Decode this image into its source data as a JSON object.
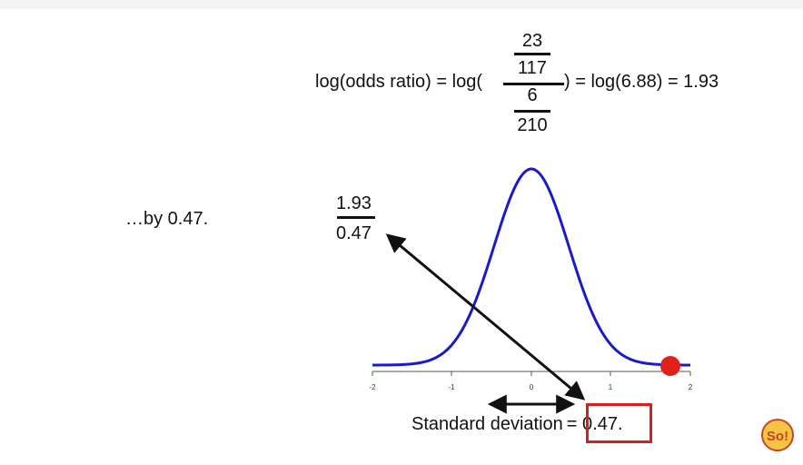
{
  "equation": {
    "prefix": "log(odds ratio) = log(",
    "numerator_top": "23",
    "numerator_bottom": "117",
    "denominator_top": "6",
    "denominator_bottom": "210",
    "suffix": ") = log(6.88) = 1.93"
  },
  "narration": "…by 0.47.",
  "ratio": {
    "numerator": "1.93",
    "denominator": "0.47"
  },
  "axis": {
    "ticks": [
      "-2",
      "-1",
      "0",
      "1",
      "2"
    ]
  },
  "standard_deviation": {
    "label": "Standard deviation",
    "value": "= 0.47."
  },
  "colors": {
    "curve": "#1a1acc",
    "point": "#e0201b",
    "highlight_box": "#d62020"
  },
  "logo": {
    "text": "So!"
  }
}
